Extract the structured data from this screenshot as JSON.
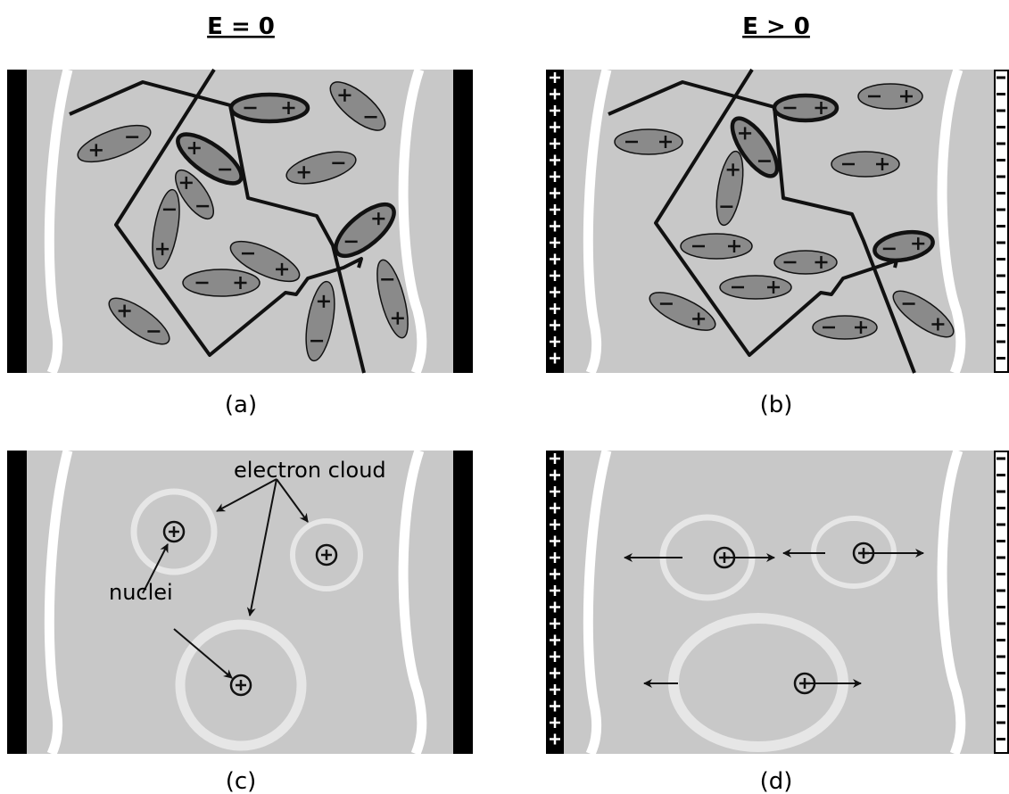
{
  "headers": [
    "E = 0",
    "E > 0"
  ],
  "panels": [
    "(a)",
    "(b)",
    "(c)",
    "(d)"
  ],
  "annotations": {
    "electron_cloud": "electron cloud",
    "nuclei": "nuclei"
  }
}
